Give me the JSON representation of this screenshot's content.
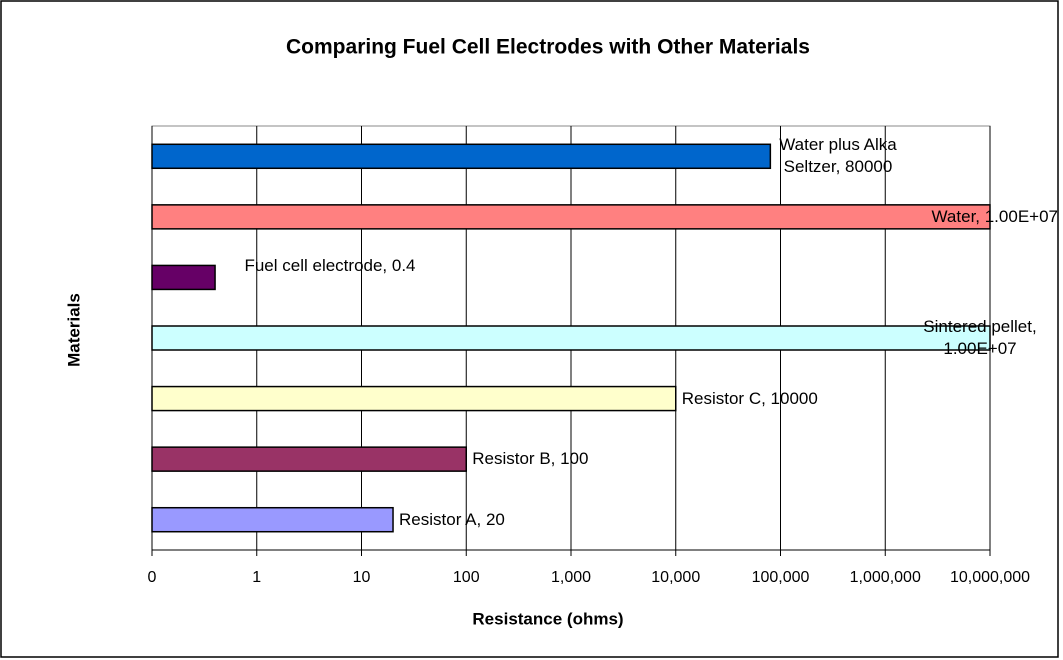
{
  "chart_data": {
    "type": "bar",
    "orientation": "horizontal",
    "title": "Comparing Fuel Cell Electrodes with Other Materials",
    "x_label": "Resistance (ohms)",
    "y_label": "Materials",
    "values": [
      20,
      100,
      10000,
      10000000,
      0.4,
      10000000,
      80000
    ],
    "value_labels": [
      "Resistor A, 20",
      "Resistor B, 100",
      "Resistor C, 10000",
      "Sintered pellet, 1.00E+07",
      "Fuel cell electrode, 0.4",
      "Water, 1.00E+07",
      "Water plus Alka Seltzer, 80000"
    ],
    "colors": [
      "#9999ff",
      "#993366",
      "#ffffcc",
      "#ccffff",
      "#660066",
      "#ff8080",
      "#0066cc"
    ],
    "xscale": "log",
    "xlim": [
      0.1,
      10000000
    ],
    "xticks": [
      {
        "value": 0.1,
        "label": "0"
      },
      1,
      10,
      100,
      {
        "value": 1000,
        "label": "1,000"
      },
      {
        "value": 10000,
        "label": "10,000"
      },
      {
        "value": 100000,
        "label": "100,000"
      },
      {
        "value": 1000000,
        "label": "1,000,000"
      },
      {
        "value": 10000000,
        "label": "10,000,000"
      }
    ],
    "grid": true
  }
}
